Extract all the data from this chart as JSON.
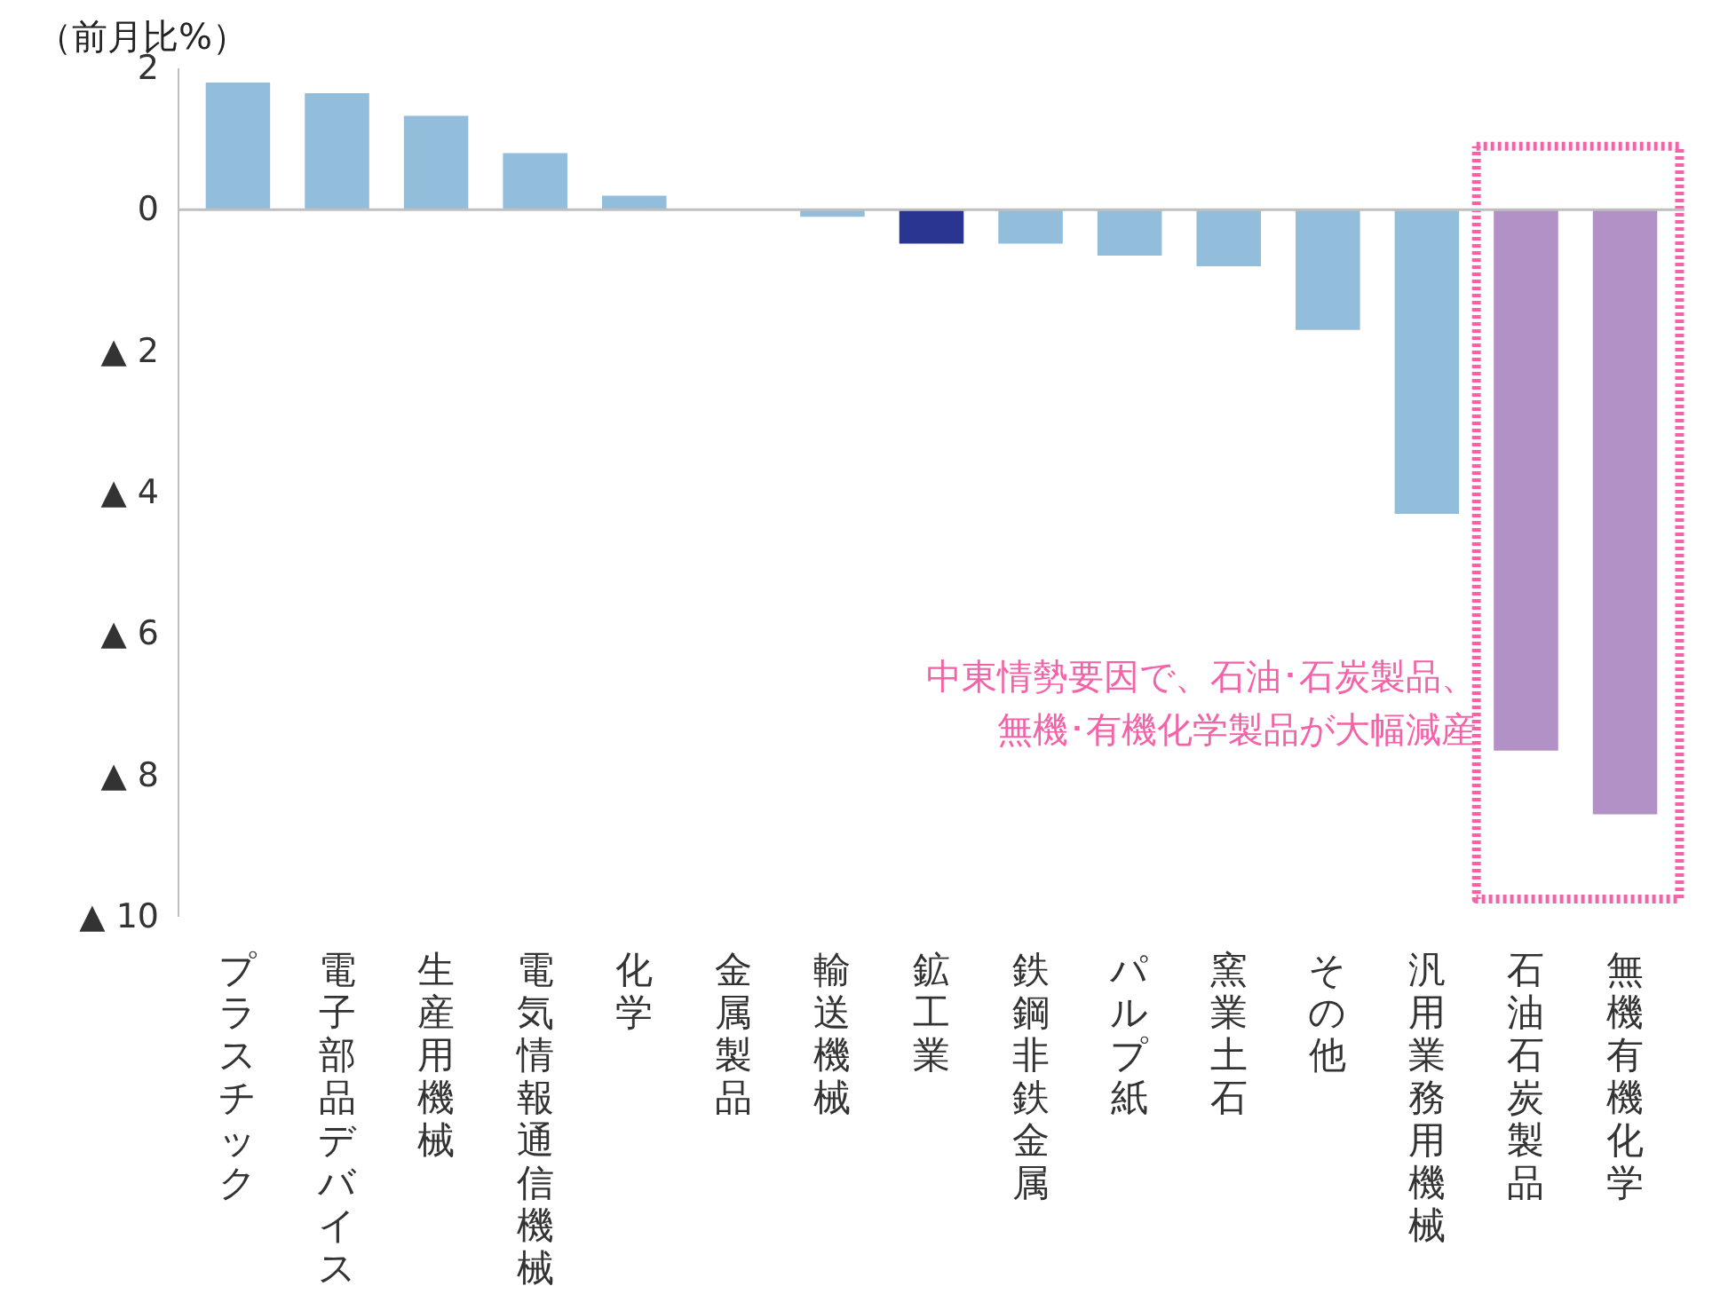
{
  "chart_data": {
    "type": "bar",
    "ylabel": "（前月比%）",
    "categories": [
      "プラスチック",
      "電子部品デバイス",
      "生産用機械",
      "電気情報通信機械",
      "化学",
      "金属製品",
      "輸送機械",
      "鉱工業",
      "鉄鋼非鉄金属",
      "パルプ紙",
      "窯業土石",
      "その他",
      "汎用業務用機械",
      "石油石炭製品",
      "無機有機化学"
    ],
    "values": [
      1.8,
      1.65,
      1.33,
      0.8,
      0.2,
      0.0,
      -0.1,
      -0.48,
      -0.48,
      -0.65,
      -0.8,
      -1.7,
      -4.3,
      -7.65,
      -8.55
    ],
    "colors": [
      "#93bedb",
      "#93bedb",
      "#93bedb",
      "#93bedb",
      "#93bedb",
      "#93bedb",
      "#93bedb",
      "#2a3592",
      "#93bedb",
      "#93bedb",
      "#93bedb",
      "#93bedb",
      "#93bedb",
      "#b191c6",
      "#b191c6"
    ],
    "ylim": [
      -10,
      2
    ],
    "yticks": [
      2,
      0,
      {
        "value": -2,
        "label": "▲ 2"
      },
      {
        "value": -4,
        "label": "▲ 4"
      },
      {
        "value": -6,
        "label": "▲ 6"
      },
      {
        "value": -8,
        "label": "▲ 8"
      },
      {
        "value": -10,
        "label": "▲ 10"
      }
    ],
    "grid": false,
    "ref_lines": [
      {
        "axis": "y",
        "value": 0,
        "color": "#bfbfbf",
        "line_style": "solid"
      }
    ],
    "annotations": [
      "中東情勢要因で、石油･石炭製品、",
      "無機･有機化学製品が大幅減産"
    ]
  }
}
